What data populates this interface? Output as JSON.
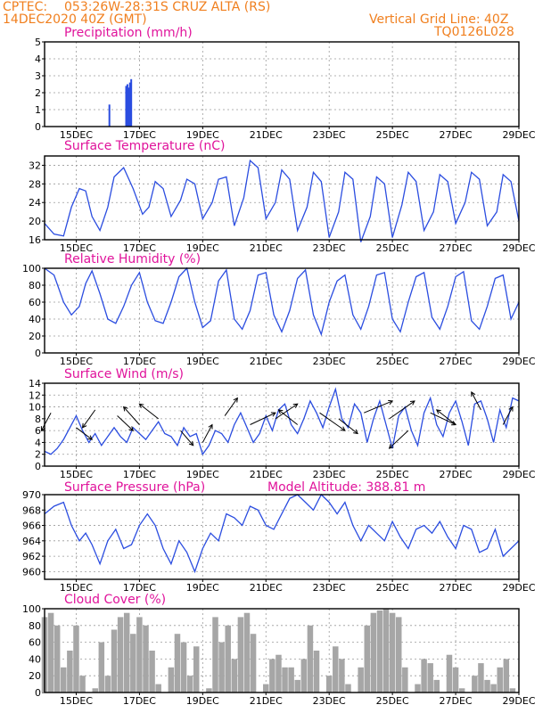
{
  "header": {
    "source": "CPTEC:",
    "location": "053:26W-28:31S  CRUZ ALTA (RS)",
    "run": "14DEC2020 40Z (GMT)",
    "grid_note": "Vertical Grid Line: 40Z",
    "code": "TQ0126L028"
  },
  "x_tick_labels": [
    "15DEC",
    "17DEC",
    "19DEC",
    "21DEC",
    "23DEC",
    "25DEC",
    "27DEC",
    "29DEC"
  ],
  "colors": {
    "series": "#2b4de0",
    "cloud": "#a6a6a6",
    "header": "#f07f1e",
    "title": "#e0139b"
  },
  "chart_data": [
    {
      "type": "bar",
      "title": "Precipitation (mm/h)",
      "ylim": [
        0,
        5
      ],
      "yticks": [
        0,
        1,
        2,
        3,
        4,
        5
      ],
      "grid": true,
      "x_unit": "days from 14DEC2020 00Z",
      "x": [
        2.05,
        2.58,
        2.62,
        2.66,
        2.7,
        2.74
      ],
      "values": [
        1.3,
        2.4,
        2.5,
        2.3,
        2.6,
        2.8
      ]
    },
    {
      "type": "line",
      "title": "Surface Temperature (nC)",
      "ylim": [
        16,
        34
      ],
      "yticks": [
        16,
        20,
        24,
        28,
        32
      ],
      "grid": true,
      "x": [
        0,
        0.3,
        0.6,
        0.85,
        1.1,
        1.3,
        1.5,
        1.75,
        2.0,
        2.2,
        2.5,
        2.8,
        3.1,
        3.3,
        3.5,
        3.75,
        4.0,
        4.3,
        4.5,
        4.75,
        5.0,
        5.3,
        5.5,
        5.75,
        6.0,
        6.3,
        6.5,
        6.75,
        7.0,
        7.3,
        7.5,
        7.75,
        8.0,
        8.3,
        8.5,
        8.75,
        9.0,
        9.3,
        9.5,
        9.75,
        10.0,
        10.3,
        10.5,
        10.75,
        11.0,
        11.3,
        11.5,
        11.75,
        12.0,
        12.3,
        12.5,
        12.75,
        13.0,
        13.3,
        13.5,
        13.75,
        14.0,
        14.3,
        14.5,
        14.75,
        15.0
      ],
      "values": [
        19.5,
        17.2,
        16.8,
        23.0,
        27.0,
        26.5,
        21.0,
        18.0,
        23.0,
        29.5,
        31.5,
        27.0,
        21.5,
        23.0,
        28.5,
        27.0,
        21.0,
        24.5,
        29.0,
        28.0,
        20.5,
        24.0,
        29.0,
        29.5,
        19.0,
        25.0,
        33.0,
        31.5,
        20.5,
        24.0,
        31.0,
        29.0,
        18.0,
        23.0,
        30.5,
        28.5,
        16.5,
        22.0,
        30.5,
        29.0,
        15.5,
        21.0,
        29.5,
        28.0,
        16.5,
        23.5,
        30.5,
        28.5,
        18.0,
        22.0,
        30.0,
        28.5,
        19.5,
        24.0,
        30.5,
        29.0,
        19.0,
        22.0,
        30.0,
        28.5,
        20.0
      ]
    },
    {
      "type": "line",
      "title": "Relative Humidity (%)",
      "ylim": [
        0,
        100
      ],
      "yticks": [
        0,
        20,
        40,
        60,
        80,
        100
      ],
      "grid": true,
      "x": [
        0,
        0.3,
        0.6,
        0.85,
        1.1,
        1.3,
        1.5,
        1.75,
        2.0,
        2.25,
        2.5,
        2.75,
        3.0,
        3.25,
        3.5,
        3.75,
        4.0,
        4.25,
        4.5,
        4.75,
        5.0,
        5.25,
        5.5,
        5.75,
        6.0,
        6.25,
        6.5,
        6.75,
        7.0,
        7.25,
        7.5,
        7.75,
        8.0,
        8.25,
        8.5,
        8.75,
        9.0,
        9.25,
        9.5,
        9.75,
        10.0,
        10.25,
        10.5,
        10.75,
        11.0,
        11.25,
        11.5,
        11.75,
        12.0,
        12.25,
        12.5,
        12.75,
        13.0,
        13.25,
        13.5,
        13.75,
        14.0,
        14.25,
        14.5,
        14.75,
        15.0
      ],
      "values": [
        100,
        92,
        60,
        45,
        55,
        82,
        97,
        70,
        40,
        35,
        55,
        80,
        95,
        60,
        38,
        35,
        60,
        90,
        100,
        60,
        30,
        38,
        85,
        98,
        40,
        28,
        50,
        92,
        95,
        45,
        25,
        50,
        88,
        98,
        45,
        22,
        60,
        85,
        92,
        45,
        28,
        55,
        92,
        95,
        40,
        25,
        60,
        90,
        95,
        42,
        28,
        55,
        90,
        96,
        38,
        28,
        55,
        88,
        92,
        40,
        60
      ]
    },
    {
      "type": "line",
      "title": "Surface Wind (m/s)",
      "ylim": [
        0,
        14
      ],
      "yticks": [
        0,
        2,
        4,
        6,
        8,
        10,
        12,
        14
      ],
      "grid": true,
      "x": [
        0,
        0.2,
        0.4,
        0.6,
        0.8,
        1.0,
        1.2,
        1.4,
        1.6,
        1.8,
        2.0,
        2.2,
        2.4,
        2.6,
        2.8,
        3.0,
        3.2,
        3.4,
        3.6,
        3.8,
        4.0,
        4.2,
        4.4,
        4.6,
        4.8,
        5.0,
        5.2,
        5.4,
        5.6,
        5.8,
        6.0,
        6.2,
        6.4,
        6.6,
        6.8,
        7.0,
        7.2,
        7.4,
        7.6,
        7.8,
        8.0,
        8.2,
        8.4,
        8.6,
        8.8,
        9.0,
        9.2,
        9.4,
        9.6,
        9.8,
        10.0,
        10.2,
        10.4,
        10.6,
        10.8,
        11.0,
        11.2,
        11.4,
        11.6,
        11.8,
        12.0,
        12.2,
        12.4,
        12.6,
        12.8,
        13.0,
        13.2,
        13.4,
        13.6,
        13.8,
        14.0,
        14.2,
        14.4,
        14.6,
        14.8,
        15.0
      ],
      "values": [
        2.5,
        2.0,
        3.0,
        4.5,
        6.5,
        8.5,
        6.0,
        4.0,
        5.5,
        3.5,
        5.0,
        6.5,
        5.0,
        4.0,
        6.5,
        5.5,
        4.5,
        6.0,
        7.5,
        5.5,
        5.0,
        3.5,
        6.5,
        5.0,
        5.5,
        2.0,
        3.5,
        6.0,
        5.5,
        4.0,
        7.0,
        9.0,
        6.5,
        4.0,
        5.5,
        8.5,
        6.0,
        9.5,
        10.5,
        7.0,
        5.5,
        8.0,
        11.0,
        9.0,
        6.5,
        10.0,
        13.0,
        8.0,
        6.5,
        10.5,
        9.0,
        4.0,
        8.0,
        11.0,
        7.0,
        3.0,
        8.5,
        10.0,
        6.0,
        3.5,
        9.0,
        11.5,
        7.0,
        5.0,
        9.0,
        11.0,
        7.5,
        3.5,
        10.5,
        11.0,
        8.0,
        4.0,
        9.5,
        6.5,
        11.5,
        11.0
      ]
    },
    {
      "type": "line",
      "title": "Surface Pressure (hPa)",
      "annotation": "Model Altitude: 388.81 m",
      "ylim": [
        959,
        970
      ],
      "yticks": [
        960,
        962,
        964,
        966,
        968,
        970
      ],
      "grid": true,
      "x": [
        0,
        0.3,
        0.6,
        0.85,
        1.1,
        1.3,
        1.5,
        1.75,
        2.0,
        2.25,
        2.5,
        2.75,
        3.0,
        3.25,
        3.5,
        3.75,
        4.0,
        4.25,
        4.5,
        4.75,
        5.0,
        5.25,
        5.5,
        5.75,
        6.0,
        6.25,
        6.5,
        6.75,
        7.0,
        7.25,
        7.5,
        7.75,
        8.0,
        8.25,
        8.5,
        8.75,
        9.0,
        9.25,
        9.5,
        9.75,
        10.0,
        10.25,
        10.5,
        10.75,
        11.0,
        11.25,
        11.5,
        11.75,
        12.0,
        12.25,
        12.5,
        12.75,
        13.0,
        13.25,
        13.5,
        13.75,
        14.0,
        14.25,
        14.5,
        14.75,
        15.0
      ],
      "values": [
        967.5,
        968.5,
        969.0,
        966.0,
        964.0,
        965.0,
        963.5,
        961.0,
        964.0,
        965.5,
        963.0,
        963.5,
        966.0,
        967.5,
        966.0,
        963.0,
        961.0,
        964.0,
        962.5,
        960.0,
        963.0,
        965.0,
        964.0,
        967.5,
        967.0,
        966.0,
        968.5,
        968.0,
        966.0,
        965.5,
        967.5,
        969.5,
        970.0,
        969.0,
        968.0,
        970.0,
        969.0,
        967.5,
        969.0,
        966.0,
        964.0,
        966.0,
        965.0,
        964.0,
        966.5,
        964.5,
        963.0,
        965.5,
        966.0,
        965.0,
        966.5,
        964.5,
        963.0,
        966.0,
        965.5,
        962.5,
        963.0,
        965.5,
        962.0,
        963.0,
        964.0
      ]
    },
    {
      "type": "area",
      "title": "Cloud Cover (%)",
      "ylim": [
        0,
        100
      ],
      "yticks": [
        0,
        20,
        40,
        60,
        80,
        100
      ],
      "grid": true,
      "x": [
        0,
        0.2,
        0.4,
        0.6,
        0.8,
        1.0,
        1.2,
        1.4,
        1.6,
        1.8,
        2.0,
        2.2,
        2.4,
        2.6,
        2.8,
        3.0,
        3.2,
        3.4,
        3.6,
        3.8,
        4.0,
        4.2,
        4.4,
        4.6,
        4.8,
        5.0,
        5.2,
        5.4,
        5.6,
        5.8,
        6.0,
        6.2,
        6.4,
        6.6,
        6.8,
        7.0,
        7.2,
        7.4,
        7.6,
        7.8,
        8.0,
        8.2,
        8.4,
        8.6,
        8.8,
        9.0,
        9.2,
        9.4,
        9.6,
        9.8,
        10.0,
        10.2,
        10.4,
        10.6,
        10.8,
        11.0,
        11.2,
        11.4,
        11.6,
        11.8,
        12.0,
        12.2,
        12.4,
        12.6,
        12.8,
        13.0,
        13.2,
        13.4,
        13.6,
        13.8,
        14.0,
        14.2,
        14.4,
        14.6,
        14.8,
        15.0
      ],
      "values": [
        90,
        95,
        80,
        30,
        50,
        80,
        20,
        0,
        5,
        60,
        20,
        75,
        90,
        95,
        70,
        90,
        80,
        50,
        10,
        0,
        30,
        70,
        60,
        20,
        55,
        0,
        5,
        90,
        60,
        80,
        40,
        90,
        95,
        70,
        0,
        10,
        40,
        45,
        30,
        30,
        15,
        40,
        80,
        50,
        0,
        20,
        55,
        40,
        10,
        0,
        30,
        80,
        95,
        98,
        100,
        95,
        90,
        30,
        0,
        10,
        40,
        35,
        15,
        0,
        45,
        30,
        5,
        0,
        20,
        35,
        15,
        10,
        30,
        40,
        5,
        0
      ]
    }
  ]
}
